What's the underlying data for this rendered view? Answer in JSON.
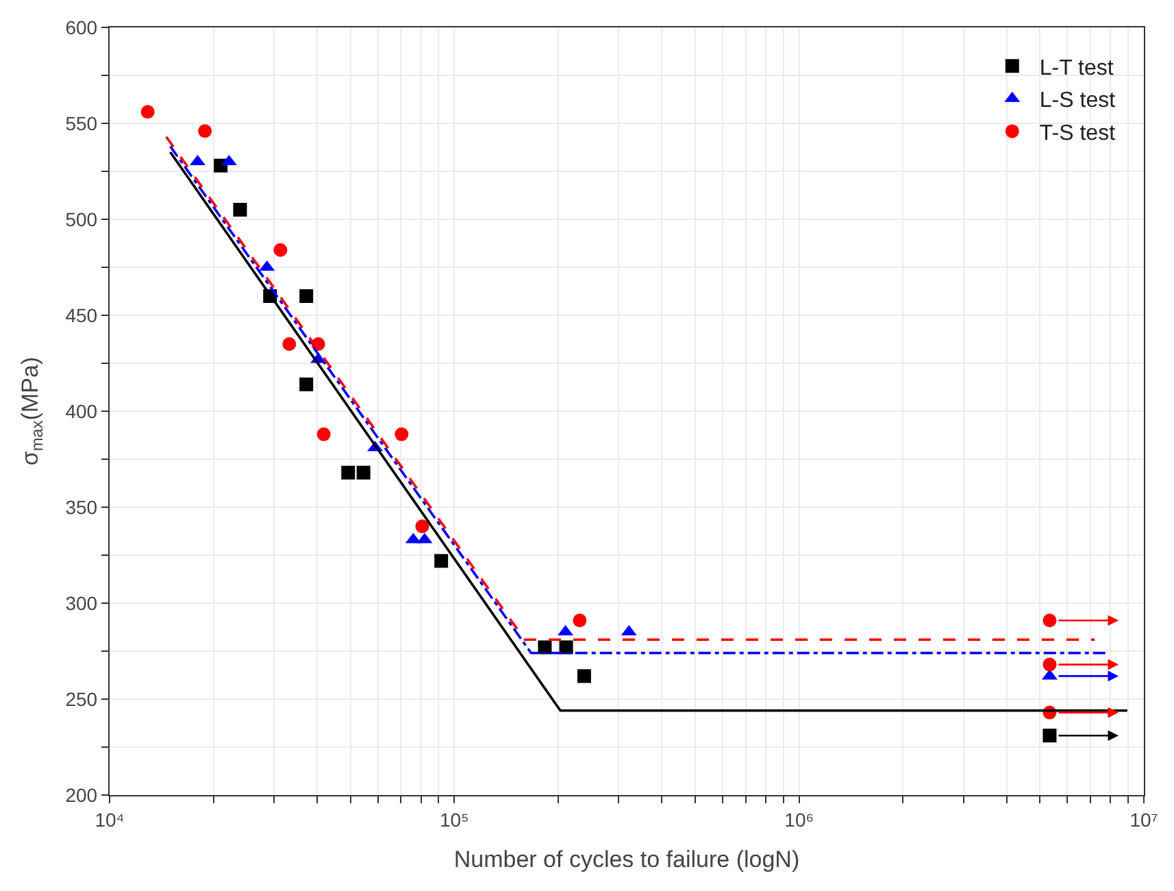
{
  "chart_data": {
    "type": "scatter",
    "xlabel": "Number of cycles to failure (logN)",
    "ylabel": "σ$_{max}$(MPa)",
    "log": "x",
    "grid": true,
    "legend": "top right",
    "xlim": [
      10000,
      10000000
    ],
    "ylim": [
      200,
      600
    ],
    "xticks": [
      {
        "value": 10000,
        "label": "10⁴"
      },
      {
        "value": 20000,
        "label": null
      },
      {
        "value": 30000,
        "label": null
      },
      {
        "value": 40000,
        "label": null
      },
      {
        "value": 50000,
        "label": null
      },
      {
        "value": 60000,
        "label": null
      },
      {
        "value": 70000,
        "label": null
      },
      {
        "value": 80000,
        "label": null
      },
      {
        "value": 90000,
        "label": null
      },
      {
        "value": 100000,
        "label": "10⁵"
      },
      {
        "value": 200000,
        "label": null
      },
      {
        "value": 300000,
        "label": null
      },
      {
        "value": 400000,
        "label": null
      },
      {
        "value": 500000,
        "label": null
      },
      {
        "value": 600000,
        "label": null
      },
      {
        "value": 700000,
        "label": null
      },
      {
        "value": 800000,
        "label": null
      },
      {
        "value": 900000,
        "label": null
      },
      {
        "value": 1000000,
        "label": "10⁶"
      },
      {
        "value": 2000000,
        "label": null
      },
      {
        "value": 3000000,
        "label": null
      },
      {
        "value": 4000000,
        "label": null
      },
      {
        "value": 5000000,
        "label": null
      },
      {
        "value": 6000000,
        "label": null
      },
      {
        "value": 7000000,
        "label": null
      },
      {
        "value": 8000000,
        "label": null
      },
      {
        "value": 9000000,
        "label": null
      },
      {
        "value": 10000000,
        "label": "10⁷"
      }
    ],
    "yticks": [
      200,
      {
        "value": 225,
        "label": null
      },
      250,
      {
        "value": 275,
        "label": null
      },
      300,
      {
        "value": 325,
        "label": null
      },
      350,
      {
        "value": 375,
        "label": null
      },
      400,
      {
        "value": 425,
        "label": null
      },
      450,
      {
        "value": 475,
        "label": null
      },
      500,
      {
        "value": 525,
        "label": null
      },
      550,
      {
        "value": 575,
        "label": null
      },
      600
    ],
    "series": [
      {
        "name": "L-T test",
        "marker": "square",
        "color": "#000000",
        "x": [
          21000,
          23900,
          29200,
          37200,
          37200,
          49200,
          54500,
          91600,
          183000,
          211000,
          238000,
          5330000
        ],
        "values": [
          528,
          505,
          460,
          460,
          414,
          368,
          368,
          322,
          277,
          277,
          262,
          231
        ]
      },
      {
        "name": "L-S test",
        "marker": "triangle",
        "color": "#0000ff",
        "x": [
          18000,
          22200,
          28600,
          40300,
          58900,
          76000,
          82000,
          210000,
          321000,
          5330000
        ],
        "values": [
          530,
          530,
          475,
          427,
          381,
          333,
          333,
          285,
          285,
          262
        ]
      },
      {
        "name": "T-S test",
        "marker": "circle",
        "color": "#ff0000",
        "x": [
          12900,
          18900,
          31300,
          33200,
          40300,
          41800,
          70300,
          80700,
          231000,
          5330000,
          5330000,
          5330000
        ],
        "values": [
          556,
          546,
          484,
          435,
          435,
          388,
          388,
          340,
          291,
          291,
          268,
          243
        ]
      },
      {
        "type": "line",
        "line_style": "solid",
        "color": "#000000",
        "x": [
          15000,
          203000,
          8950000
        ],
        "values": [
          535,
          244,
          244
        ]
      },
      {
        "type": "line",
        "line_style": "dashdot",
        "color": "#0000ff",
        "x": [
          15000,
          167000,
          7800000
        ],
        "values": [
          538,
          274,
          274
        ]
      },
      {
        "type": "line",
        "line_style": "dashed",
        "color": "#ff0000",
        "x": [
          14600,
          160000,
          7200000
        ],
        "values": [
          543,
          281,
          281
        ]
      }
    ]
  }
}
